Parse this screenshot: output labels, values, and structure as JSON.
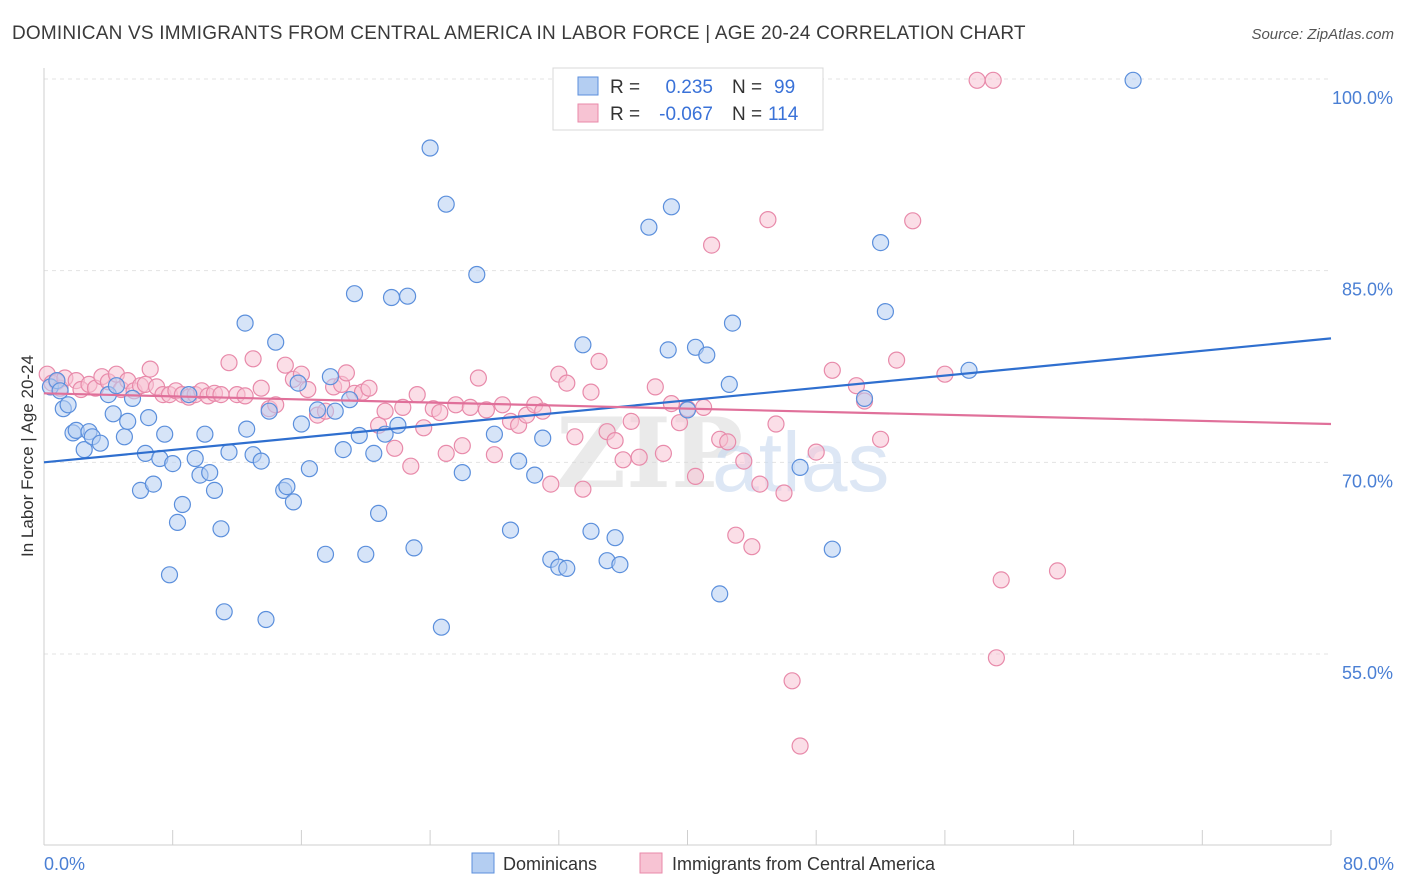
{
  "title": "DOMINICAN VS IMMIGRANTS FROM CENTRAL AMERICA IN LABOR FORCE | AGE 20-24 CORRELATION CHART",
  "source": "Source: ZipAtlas.com",
  "watermark": {
    "zip": "ZIP",
    "atlas": "atlas"
  },
  "colors": {
    "blue_fill": "#b4cef2",
    "blue_stroke": "#5b8fdc",
    "blue_line": "#2f6fcf",
    "pink_fill": "#f7c3d3",
    "pink_stroke": "#e88aaa",
    "pink_line": "#e0709a",
    "grid": "#e3e3e3",
    "tick_text": "#4a7fd4"
  },
  "legend": {
    "rows": [
      {
        "r_label": "R =",
        "r_value": "0.235",
        "n_label": "N =",
        "n_value": "99"
      },
      {
        "r_label": "R =",
        "r_value": "-0.067",
        "n_label": "N =",
        "n_value": "114"
      }
    ]
  },
  "bottom_legend": [
    "Dominicans",
    "Immigrants from Central America"
  ],
  "chart_data": {
    "type": "scatter",
    "title": "DOMINICAN VS IMMIGRANTS FROM CENTRAL AMERICA IN LABOR FORCE | AGE 20-24 CORRELATION CHART",
    "xlabel": "",
    "ylabel": "In Labor Force | Age 20-24",
    "xlim": [
      0,
      80
    ],
    "ylim": [
      40,
      102
    ],
    "x_tick_labels": [
      "0.0%",
      "80.0%"
    ],
    "y_ticks": [
      55,
      70,
      85,
      100
    ],
    "y_tick_labels": [
      "55.0%",
      "70.0%",
      "85.0%",
      "100.0%"
    ],
    "grid": true,
    "legend_position": "top-center",
    "series": [
      {
        "name": "Dominicans",
        "trend": {
          "x": [
            0,
            80
          ],
          "y": [
            70.0,
            79.7
          ]
        },
        "points": [
          [
            0.4,
            75.9
          ],
          [
            0.8,
            76.4
          ],
          [
            1.0,
            75.6
          ],
          [
            1.2,
            74.2
          ],
          [
            1.5,
            74.5
          ],
          [
            1.8,
            72.3
          ],
          [
            2.0,
            72.5
          ],
          [
            2.5,
            71.0
          ],
          [
            2.8,
            72.4
          ],
          [
            3.0,
            72.0
          ],
          [
            3.5,
            71.5
          ],
          [
            4.0,
            75.3
          ],
          [
            4.3,
            73.8
          ],
          [
            4.5,
            76.0
          ],
          [
            5.0,
            72.0
          ],
          [
            5.2,
            73.2
          ],
          [
            5.5,
            75.0
          ],
          [
            6.0,
            67.8
          ],
          [
            6.3,
            70.7
          ],
          [
            6.5,
            73.5
          ],
          [
            6.8,
            68.3
          ],
          [
            7.2,
            70.3
          ],
          [
            7.5,
            72.2
          ],
          [
            7.8,
            61.2
          ],
          [
            8.0,
            69.9
          ],
          [
            8.3,
            65.3
          ],
          [
            8.6,
            66.7
          ],
          [
            9.0,
            75.3
          ],
          [
            9.4,
            70.3
          ],
          [
            9.7,
            69.0
          ],
          [
            10.0,
            72.2
          ],
          [
            10.3,
            69.2
          ],
          [
            10.6,
            67.8
          ],
          [
            11.0,
            64.8
          ],
          [
            11.2,
            58.3
          ],
          [
            11.5,
            70.8
          ],
          [
            12.5,
            80.9
          ],
          [
            12.6,
            72.6
          ],
          [
            13.0,
            70.6
          ],
          [
            13.5,
            70.1
          ],
          [
            13.8,
            57.7
          ],
          [
            14.0,
            74.0
          ],
          [
            14.4,
            79.4
          ],
          [
            14.9,
            67.8
          ],
          [
            15.1,
            68.1
          ],
          [
            15.5,
            66.9
          ],
          [
            15.8,
            76.2
          ],
          [
            16.0,
            73.0
          ],
          [
            16.5,
            69.5
          ],
          [
            17.0,
            74.1
          ],
          [
            17.5,
            62.8
          ],
          [
            17.8,
            76.7
          ],
          [
            18.1,
            74.0
          ],
          [
            18.6,
            71.0
          ],
          [
            19.0,
            74.9
          ],
          [
            19.3,
            83.2
          ],
          [
            19.6,
            72.1
          ],
          [
            20.0,
            62.8
          ],
          [
            20.5,
            70.7
          ],
          [
            20.8,
            66.0
          ],
          [
            21.2,
            72.2
          ],
          [
            21.6,
            82.9
          ],
          [
            22.0,
            72.9
          ],
          [
            22.6,
            83.0
          ],
          [
            23.0,
            63.3
          ],
          [
            24.0,
            94.6
          ],
          [
            24.7,
            57.1
          ],
          [
            25.0,
            90.2
          ],
          [
            26.0,
            69.2
          ],
          [
            26.9,
            84.7
          ],
          [
            28.0,
            72.2
          ],
          [
            29.0,
            64.7
          ],
          [
            29.5,
            70.1
          ],
          [
            30.5,
            69.0
          ],
          [
            31.0,
            71.9
          ],
          [
            31.5,
            62.4
          ],
          [
            32.0,
            61.8
          ],
          [
            32.5,
            61.7
          ],
          [
            33.5,
            79.2
          ],
          [
            34.0,
            64.6
          ],
          [
            35.0,
            62.3
          ],
          [
            35.5,
            64.1
          ],
          [
            35.8,
            62.0
          ],
          [
            37.6,
            88.4
          ],
          [
            38.8,
            78.8
          ],
          [
            39.0,
            90.0
          ],
          [
            40.0,
            74.1
          ],
          [
            40.5,
            79.0
          ],
          [
            41.2,
            78.4
          ],
          [
            42.0,
            59.7
          ],
          [
            42.6,
            76.1
          ],
          [
            42.8,
            80.9
          ],
          [
            47.0,
            69.6
          ],
          [
            49.0,
            63.2
          ],
          [
            51.0,
            75.0
          ],
          [
            52.0,
            87.2
          ],
          [
            52.3,
            81.8
          ],
          [
            57.5,
            77.2
          ],
          [
            67.7,
            99.9
          ]
        ]
      },
      {
        "name": "Immigrants from Central America",
        "trend": {
          "x": [
            0,
            80
          ],
          "y": [
            75.4,
            73.0
          ]
        },
        "points": [
          [
            0.2,
            76.9
          ],
          [
            0.5,
            76.2
          ],
          [
            0.8,
            76.3
          ],
          [
            1.0,
            75.8
          ],
          [
            1.3,
            76.6
          ],
          [
            2.0,
            76.4
          ],
          [
            2.3,
            75.7
          ],
          [
            2.8,
            76.1
          ],
          [
            3.2,
            75.8
          ],
          [
            3.6,
            76.7
          ],
          [
            4.0,
            76.3
          ],
          [
            4.5,
            76.9
          ],
          [
            4.8,
            75.7
          ],
          [
            5.2,
            76.4
          ],
          [
            5.6,
            75.6
          ],
          [
            6.0,
            76.0
          ],
          [
            6.3,
            76.1
          ],
          [
            6.6,
            77.3
          ],
          [
            7.0,
            75.9
          ],
          [
            7.4,
            75.3
          ],
          [
            7.8,
            75.3
          ],
          [
            8.2,
            75.6
          ],
          [
            8.6,
            75.3
          ],
          [
            9.0,
            75.1
          ],
          [
            9.4,
            75.3
          ],
          [
            9.8,
            75.6
          ],
          [
            10.2,
            75.2
          ],
          [
            10.6,
            75.4
          ],
          [
            11.0,
            75.3
          ],
          [
            11.5,
            77.8
          ],
          [
            12.0,
            75.3
          ],
          [
            12.5,
            75.2
          ],
          [
            13.0,
            78.1
          ],
          [
            13.5,
            75.8
          ],
          [
            14.0,
            74.2
          ],
          [
            14.4,
            74.5
          ],
          [
            15.0,
            77.6
          ],
          [
            15.5,
            76.5
          ],
          [
            16.0,
            76.9
          ],
          [
            16.4,
            75.7
          ],
          [
            17.0,
            73.7
          ],
          [
            17.5,
            74.0
          ],
          [
            18.0,
            75.9
          ],
          [
            18.5,
            76.1
          ],
          [
            18.8,
            77.0
          ],
          [
            19.3,
            75.4
          ],
          [
            19.8,
            75.5
          ],
          [
            20.2,
            75.8
          ],
          [
            20.8,
            72.9
          ],
          [
            21.2,
            74.0
          ],
          [
            21.8,
            71.1
          ],
          [
            22.3,
            74.3
          ],
          [
            22.8,
            69.7
          ],
          [
            23.2,
            75.3
          ],
          [
            23.6,
            72.7
          ],
          [
            24.2,
            74.2
          ],
          [
            24.6,
            73.9
          ],
          [
            25.0,
            70.7
          ],
          [
            25.6,
            74.5
          ],
          [
            26.0,
            71.3
          ],
          [
            26.5,
            74.3
          ],
          [
            27.0,
            76.6
          ],
          [
            27.5,
            74.1
          ],
          [
            28.0,
            70.6
          ],
          [
            28.5,
            74.5
          ],
          [
            29.0,
            73.2
          ],
          [
            29.5,
            72.9
          ],
          [
            30.0,
            73.7
          ],
          [
            30.5,
            74.5
          ],
          [
            31.0,
            74.0
          ],
          [
            31.5,
            68.3
          ],
          [
            32.0,
            76.9
          ],
          [
            32.5,
            76.2
          ],
          [
            33.0,
            72.0
          ],
          [
            33.5,
            67.9
          ],
          [
            34.0,
            75.5
          ],
          [
            34.5,
            77.9
          ],
          [
            35.0,
            72.4
          ],
          [
            35.5,
            71.7
          ],
          [
            36.0,
            70.2
          ],
          [
            36.5,
            73.2
          ],
          [
            37.0,
            70.4
          ],
          [
            38.0,
            75.9
          ],
          [
            38.5,
            70.7
          ],
          [
            39.0,
            74.6
          ],
          [
            39.5,
            73.1
          ],
          [
            40.0,
            74.2
          ],
          [
            40.5,
            68.9
          ],
          [
            41.0,
            74.3
          ],
          [
            41.5,
            87.0
          ],
          [
            42.0,
            71.8
          ],
          [
            42.5,
            71.6
          ],
          [
            43.0,
            64.3
          ],
          [
            43.5,
            70.1
          ],
          [
            44.0,
            63.4
          ],
          [
            44.5,
            68.3
          ],
          [
            45.0,
            89.0
          ],
          [
            45.5,
            73.0
          ],
          [
            46.0,
            67.6
          ],
          [
            46.5,
            52.9
          ],
          [
            47.0,
            47.8
          ],
          [
            48.0,
            70.8
          ],
          [
            49.0,
            77.2
          ],
          [
            50.5,
            76.0
          ],
          [
            51.0,
            74.8
          ],
          [
            52.0,
            71.8
          ],
          [
            53.0,
            78.0
          ],
          [
            54.0,
            88.9
          ],
          [
            56.0,
            76.9
          ],
          [
            58.0,
            99.9
          ],
          [
            59.0,
            99.9
          ],
          [
            59.2,
            54.7
          ],
          [
            59.5,
            60.8
          ],
          [
            63.0,
            61.5
          ]
        ]
      }
    ]
  }
}
